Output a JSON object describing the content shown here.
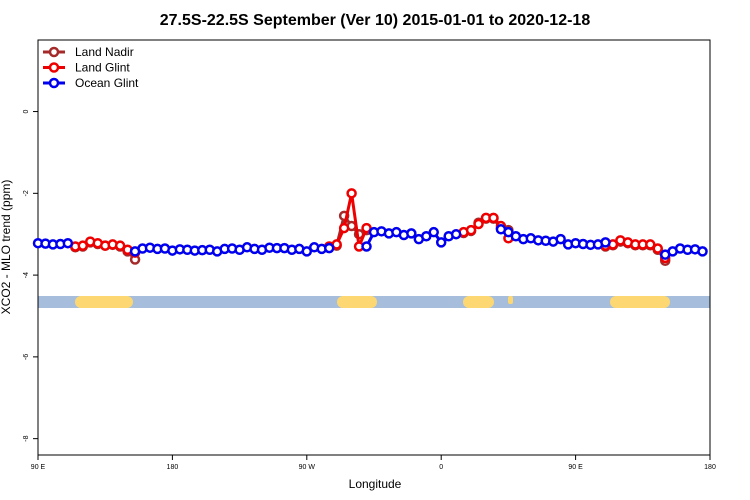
{
  "chart_data": {
    "type": "line",
    "title": "27.5S-22.5S September (Ver 10)   2015-01-01 to 2020-12-18",
    "x_label": "Longitude",
    "y_label": "XCO2 - MLO trend (ppm)",
    "xlim": [
      90,
      540
    ],
    "ylim": [
      -8.4,
      1.75
    ],
    "xticks": [
      {
        "value": 90,
        "label": "90 E"
      },
      180,
      {
        "value": 270,
        "label": "90 W"
      },
      {
        "value": 360,
        "label": "0"
      },
      {
        "value": 450,
        "label": "90 E"
      },
      {
        "value": 540,
        "label": "180"
      }
    ],
    "yticks": [
      0,
      -2,
      -4,
      -6,
      -8
    ],
    "legend": "top-left",
    "x": [
      90,
      95,
      100,
      105,
      110,
      115,
      120,
      125,
      130,
      135,
      140,
      145,
      150,
      155,
      160,
      165,
      170,
      175,
      180,
      185,
      190,
      195,
      200,
      205,
      210,
      215,
      220,
      225,
      230,
      235,
      240,
      245,
      250,
      255,
      260,
      265,
      270,
      275,
      280,
      285,
      290,
      295,
      300,
      305,
      310,
      315,
      320,
      325,
      330,
      335,
      340,
      345,
      350,
      355,
      360,
      365,
      370,
      375,
      380,
      385,
      390,
      395,
      400,
      405,
      410,
      415,
      420,
      425,
      430,
      435,
      440,
      445,
      450,
      455,
      460,
      465,
      470,
      475,
      480,
      485,
      490,
      495,
      500,
      505,
      510,
      515,
      520,
      525,
      530,
      535,
      540
    ],
    "series": [
      {
        "name": "Land Nadir",
        "color": "#a52a2a",
        "values": [
          null,
          null,
          null,
          null,
          null,
          -3.32,
          -3.3,
          -3.2,
          -3.24,
          -3.28,
          -3.26,
          -3.3,
          -3.42,
          -3.62,
          null,
          null,
          null,
          null,
          null,
          null,
          null,
          null,
          null,
          null,
          null,
          null,
          null,
          null,
          null,
          null,
          null,
          null,
          null,
          null,
          null,
          null,
          null,
          null,
          null,
          -3.32,
          -3.28,
          -2.55,
          -2.8,
          -3.0,
          -2.9,
          null,
          null,
          null,
          null,
          null,
          null,
          null,
          null,
          null,
          null,
          null,
          null,
          -2.97,
          -2.92,
          -2.72,
          -2.62,
          -2.62,
          -2.85,
          -2.9,
          null,
          null,
          null,
          null,
          null,
          null,
          null,
          null,
          null,
          null,
          null,
          null,
          -3.3,
          -3.27,
          -3.18,
          -3.22,
          -3.27,
          -3.27,
          -3.27,
          -3.38,
          -3.65,
          null,
          null,
          null,
          null,
          null,
          null
        ]
      },
      {
        "name": "Land Glint",
        "color": "#ee0000",
        "values": [
          null,
          null,
          null,
          null,
          null,
          -3.3,
          -3.28,
          -3.18,
          -3.22,
          -3.28,
          -3.25,
          -3.28,
          -3.38,
          -3.45,
          null,
          null,
          null,
          null,
          null,
          null,
          null,
          null,
          null,
          null,
          null,
          null,
          null,
          null,
          null,
          null,
          null,
          null,
          null,
          null,
          null,
          null,
          null,
          null,
          null,
          -3.3,
          -3.25,
          -2.85,
          -2.0,
          -3.3,
          -2.85,
          null,
          null,
          null,
          null,
          null,
          null,
          null,
          null,
          null,
          null,
          null,
          null,
          -2.95,
          -2.9,
          -2.75,
          -2.6,
          -2.6,
          -2.8,
          -3.1,
          null,
          null,
          null,
          null,
          null,
          null,
          null,
          null,
          null,
          null,
          null,
          null,
          -3.28,
          -3.25,
          -3.15,
          -3.2,
          -3.25,
          -3.25,
          -3.25,
          -3.35,
          -3.58,
          null,
          null,
          null,
          null,
          null,
          null
        ]
      },
      {
        "name": "Ocean Glint",
        "color": "#0000ee",
        "values": [
          -3.22,
          -3.23,
          -3.25,
          -3.24,
          -3.22,
          null,
          null,
          null,
          null,
          null,
          null,
          null,
          null,
          -3.42,
          -3.35,
          -3.33,
          -3.36,
          -3.35,
          -3.4,
          -3.37,
          -3.38,
          -3.4,
          -3.39,
          -3.38,
          -3.42,
          -3.36,
          -3.35,
          -3.38,
          -3.32,
          -3.36,
          -3.38,
          -3.33,
          -3.34,
          -3.34,
          -3.38,
          -3.36,
          -3.42,
          -3.32,
          -3.36,
          -3.34,
          null,
          null,
          null,
          null,
          -3.3,
          -2.95,
          -2.93,
          -2.98,
          -2.95,
          -3.02,
          -2.98,
          -3.12,
          -3.05,
          -2.95,
          -3.2,
          -3.05,
          -3.0,
          null,
          null,
          null,
          null,
          null,
          -2.88,
          -2.95,
          -3.05,
          -3.12,
          -3.1,
          -3.15,
          -3.16,
          -3.18,
          -3.12,
          -3.25,
          -3.22,
          -3.24,
          -3.26,
          -3.25,
          -3.2,
          null,
          null,
          null,
          null,
          null,
          null,
          null,
          -3.5,
          -3.42,
          -3.35,
          -3.38,
          -3.37,
          -3.42,
          null
        ]
      }
    ]
  }
}
